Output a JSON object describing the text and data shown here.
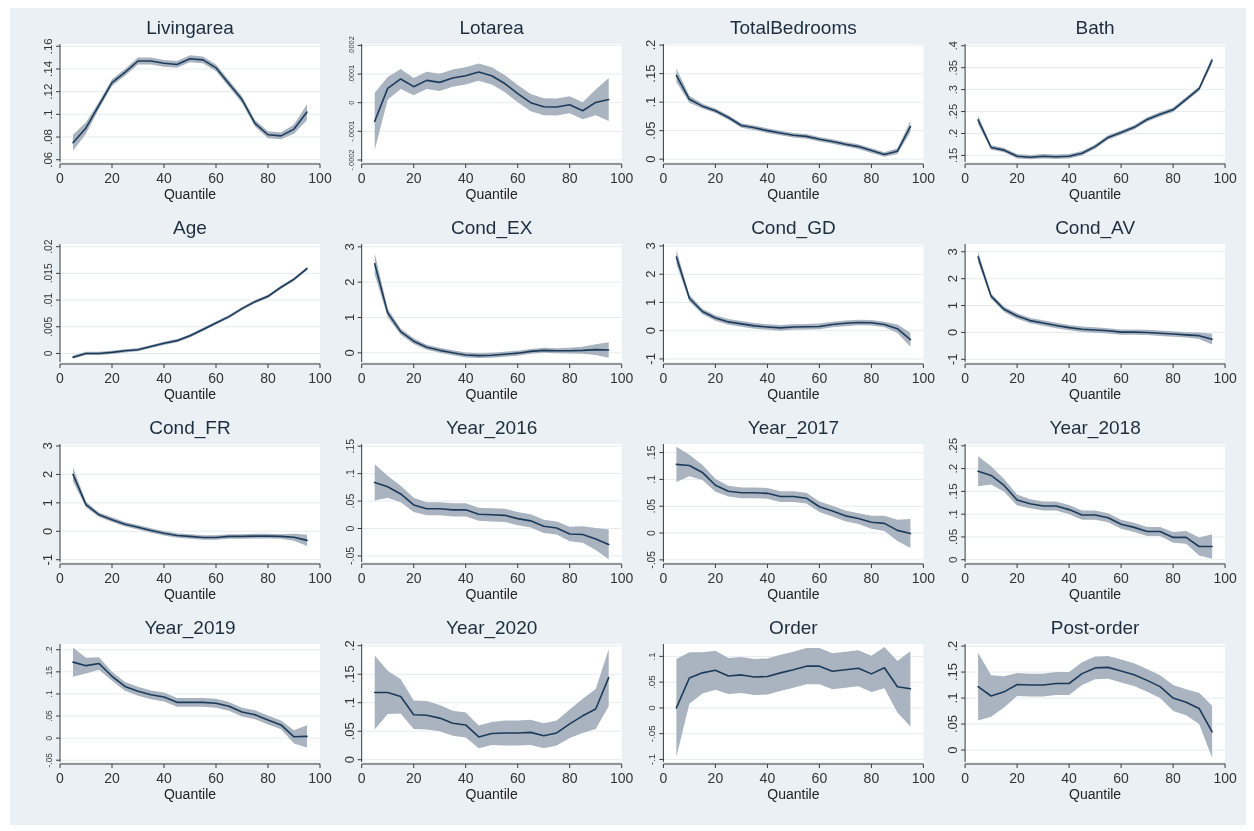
{
  "chart_data": [
    {
      "type": "line",
      "title": "Livingarea",
      "xlabel": "Quantile",
      "grid": "y",
      "xlim": [
        0,
        100
      ],
      "xticks": [
        0,
        20,
        40,
        60,
        80,
        100
      ],
      "ylim": [
        0.058,
        0.162
      ],
      "yticks": [
        {
          "value": 0.06,
          "label": ".06"
        },
        {
          "value": 0.08,
          "label": ".08"
        },
        {
          "value": 0.1,
          "label": ".1"
        },
        {
          "value": 0.12,
          "label": ".12"
        },
        {
          "value": 0.14,
          "label": ".14"
        },
        {
          "value": 0.16,
          "label": ".16"
        }
      ],
      "x": [
        5,
        10,
        15,
        20,
        25,
        30,
        35,
        40,
        45,
        50,
        55,
        60,
        65,
        70,
        75,
        80,
        85,
        90,
        95
      ],
      "series": [
        {
          "color": "#1c3a5a",
          "values": [
            0.075,
            0.088,
            0.108,
            0.128,
            0.137,
            0.147,
            0.147,
            0.145,
            0.144,
            0.149,
            0.148,
            0.141,
            0.127,
            0.113,
            0.092,
            0.082,
            0.081,
            0.087,
            0.102
          ],
          "lower": [
            0.068,
            0.083,
            0.105,
            0.125,
            0.134,
            0.144,
            0.144,
            0.142,
            0.141,
            0.146,
            0.145,
            0.138,
            0.124,
            0.11,
            0.089,
            0.079,
            0.078,
            0.083,
            0.095
          ],
          "upper": [
            0.082,
            0.093,
            0.111,
            0.131,
            0.14,
            0.15,
            0.15,
            0.148,
            0.147,
            0.152,
            0.151,
            0.144,
            0.13,
            0.116,
            0.095,
            0.085,
            0.084,
            0.091,
            0.109
          ]
        }
      ]
    },
    {
      "type": "line",
      "title": "Lotarea",
      "xlabel": "Quantile",
      "grid": "y",
      "xlim": [
        0,
        100
      ],
      "xticks": [
        0,
        20,
        40,
        60,
        80,
        100
      ],
      "ylim": [
        -0.000207,
        0.000205
      ],
      "yticks": [
        {
          "value": -0.0002,
          "label": "-.0002"
        },
        {
          "value": -0.0001,
          "label": "-.0001"
        },
        0,
        {
          "value": 0.0001,
          "label": ".0001"
        },
        {
          "value": 0.0002,
          "label": ".0002"
        }
      ],
      "x": [
        5,
        10,
        15,
        20,
        25,
        30,
        35,
        40,
        45,
        50,
        55,
        60,
        65,
        70,
        75,
        80,
        85,
        90,
        95
      ],
      "series": [
        {
          "color": "#1c3a5a",
          "values": [
            -6.5e-05,
            5e-05,
            8.3e-05,
            5.6e-05,
            7.8e-05,
            7.1e-05,
            8.6e-05,
            9.4e-05,
            0.000107,
            9.4e-05,
            6.7e-05,
            3.2e-05,
            0,
            -1.4e-05,
            -1.5e-05,
            -7e-06,
            -2.8e-05,
            1e-06,
            1.1e-05
          ],
          "lower": [
            -0.000165,
            1e-05,
            4.8e-05,
            2.6e-05,
            4.8e-05,
            4.1e-05,
            5.6e-05,
            6.4e-05,
            7.7e-05,
            6.4e-05,
            3.7e-05,
            2e-06,
            -3e-05,
            -4.4e-05,
            -4.5e-05,
            -3.7e-05,
            -5.8e-05,
            -4.4e-05,
            -6.4e-05
          ],
          "upper": [
            3.5e-05,
            9e-05,
            0.000118,
            8.6e-05,
            0.000108,
            0.000101,
            0.000116,
            0.000124,
            0.000137,
            0.000124,
            9.7e-05,
            6.2e-05,
            3e-05,
            1.6e-05,
            1.5e-05,
            2.3e-05,
            2e-06,
            4.6e-05,
            8.6e-05
          ]
        }
      ]
    },
    {
      "type": "line",
      "title": "TotalBedrooms",
      "xlabel": "Quantile",
      "grid": "y",
      "xlim": [
        0,
        100
      ],
      "xticks": [
        0,
        20,
        40,
        60,
        80,
        100
      ],
      "ylim": [
        -0.005,
        0.202
      ],
      "yticks": [
        0,
        {
          "value": 0.05,
          "label": ".05"
        },
        {
          "value": 0.1,
          "label": ".1"
        },
        {
          "value": 0.15,
          "label": ".15"
        },
        {
          "value": 0.2,
          "label": ".2"
        }
      ],
      "x": [
        5,
        10,
        15,
        20,
        25,
        30,
        35,
        40,
        45,
        50,
        55,
        60,
        65,
        70,
        75,
        80,
        85,
        90,
        95
      ],
      "series": [
        {
          "color": "#1c3a5a",
          "values": [
            0.147,
            0.105,
            0.093,
            0.085,
            0.073,
            0.059,
            0.055,
            0.05,
            0.046,
            0.042,
            0.04,
            0.035,
            0.031,
            0.026,
            0.022,
            0.015,
            0.008,
            0.014,
            0.057
          ],
          "lower": [
            0.135,
            0.099,
            0.089,
            0.081,
            0.069,
            0.055,
            0.051,
            0.046,
            0.042,
            0.038,
            0.036,
            0.031,
            0.027,
            0.022,
            0.018,
            0.011,
            0.004,
            0.009,
            0.047
          ],
          "upper": [
            0.159,
            0.111,
            0.097,
            0.089,
            0.077,
            0.063,
            0.059,
            0.054,
            0.05,
            0.046,
            0.044,
            0.039,
            0.035,
            0.03,
            0.026,
            0.019,
            0.012,
            0.019,
            0.067
          ]
        }
      ]
    },
    {
      "type": "line",
      "title": "Bath",
      "xlabel": "Quantile",
      "grid": "y",
      "xlim": [
        0,
        100
      ],
      "xticks": [
        0,
        20,
        40,
        60,
        80,
        100
      ],
      "ylim": [
        0.135,
        0.404
      ],
      "yticks": [
        {
          "value": 0.15,
          "label": ".15"
        },
        {
          "value": 0.2,
          "label": ".2"
        },
        {
          "value": 0.25,
          "label": ".25"
        },
        {
          "value": 0.3,
          "label": ".3"
        },
        {
          "value": 0.35,
          "label": ".35"
        },
        {
          "value": 0.4,
          "label": ".4"
        }
      ],
      "x": [
        5,
        10,
        15,
        20,
        25,
        30,
        35,
        40,
        45,
        50,
        55,
        60,
        65,
        70,
        75,
        80,
        85,
        90,
        95
      ],
      "series": [
        {
          "color": "#1c3a5a",
          "values": [
            0.231,
            0.168,
            0.162,
            0.148,
            0.146,
            0.148,
            0.147,
            0.148,
            0.155,
            0.17,
            0.191,
            0.202,
            0.214,
            0.232,
            0.244,
            0.254,
            0.278,
            0.302,
            0.367
          ],
          "lower": [
            0.221,
            0.163,
            0.157,
            0.143,
            0.141,
            0.143,
            0.142,
            0.143,
            0.15,
            0.165,
            0.186,
            0.197,
            0.209,
            0.227,
            0.239,
            0.249,
            0.273,
            0.297,
            0.359
          ],
          "upper": [
            0.241,
            0.173,
            0.167,
            0.153,
            0.151,
            0.153,
            0.152,
            0.153,
            0.16,
            0.175,
            0.196,
            0.207,
            0.219,
            0.237,
            0.249,
            0.259,
            0.283,
            0.307,
            0.375
          ]
        }
      ]
    },
    {
      "type": "line",
      "title": "Age",
      "xlabel": "Quantile",
      "grid": "y",
      "xlim": [
        0,
        100
      ],
      "xticks": [
        0,
        20,
        40,
        60,
        80,
        100
      ],
      "ylim": [
        -0.0016,
        0.0205
      ],
      "yticks": [
        0,
        {
          "value": 0.005,
          "label": ".005"
        },
        {
          "value": 0.01,
          "label": ".01"
        },
        {
          "value": 0.015,
          "label": ".015"
        },
        {
          "value": 0.02,
          "label": ".02"
        }
      ],
      "x": [
        5,
        10,
        15,
        20,
        25,
        30,
        35,
        40,
        45,
        50,
        55,
        60,
        65,
        70,
        75,
        80,
        85,
        90,
        95
      ],
      "series": [
        {
          "color": "#1c3a5a",
          "values": [
            -0.0007,
            0,
            0,
            0.0002,
            0.0005,
            0.0007,
            0.0013,
            0.0019,
            0.0024,
            0.0033,
            0.0045,
            0.0057,
            0.0069,
            0.0084,
            0.0097,
            0.0107,
            0.0124,
            0.0139,
            0.0159
          ],
          "lower": [
            -0.001,
            -0.0003,
            -0.0003,
            -0.0001,
            0.0002,
            0.0004,
            0.001,
            0.0016,
            0.0021,
            0.003,
            0.0042,
            0.0054,
            0.0066,
            0.0081,
            0.0094,
            0.0104,
            0.0121,
            0.0136,
            0.0156
          ],
          "upper": [
            -0.0004,
            0.0003,
            0.0003,
            0.0005,
            0.0008,
            0.001,
            0.0016,
            0.0022,
            0.0027,
            0.0036,
            0.0048,
            0.006,
            0.0072,
            0.0087,
            0.01,
            0.011,
            0.0127,
            0.0142,
            0.0162
          ]
        }
      ]
    },
    {
      "type": "line",
      "title": "Cond_EX",
      "xlabel": "Quantile",
      "grid": "y",
      "xlim": [
        0,
        100
      ],
      "xticks": [
        0,
        20,
        40,
        60,
        80,
        100
      ],
      "ylim": [
        -0.26,
        3.08
      ],
      "yticks": [
        0,
        1,
        2,
        3
      ],
      "x": [
        5,
        10,
        15,
        20,
        25,
        30,
        35,
        40,
        45,
        50,
        55,
        60,
        65,
        70,
        75,
        80,
        85,
        90,
        95
      ],
      "series": [
        {
          "color": "#1c3a5a",
          "values": [
            2.52,
            1.13,
            0.6,
            0.33,
            0.16,
            0.07,
            0,
            -0.06,
            -0.08,
            -0.07,
            -0.04,
            -0.01,
            0.04,
            0.07,
            0.06,
            0.06,
            0.07,
            0.09,
            0.08
          ],
          "lower": [
            2.22,
            1.01,
            0.51,
            0.25,
            0.09,
            0,
            -0.07,
            -0.13,
            -0.15,
            -0.14,
            -0.11,
            -0.08,
            -0.03,
            0,
            -0.01,
            -0.02,
            -0.03,
            -0.06,
            -0.14
          ],
          "upper": [
            2.82,
            1.25,
            0.69,
            0.41,
            0.23,
            0.14,
            0.07,
            0.01,
            -0.01,
            0,
            0.03,
            0.06,
            0.11,
            0.14,
            0.13,
            0.14,
            0.17,
            0.24,
            0.3
          ]
        }
      ]
    },
    {
      "type": "line",
      "title": "Cond_GD",
      "xlabel": "Quantile",
      "grid": "y",
      "xlim": [
        0,
        100
      ],
      "xticks": [
        0,
        20,
        40,
        60,
        80,
        100
      ],
      "ylim": [
        -1.11,
        3.07
      ],
      "yticks": [
        -1,
        0,
        1,
        2,
        3
      ],
      "x": [
        5,
        10,
        15,
        20,
        25,
        30,
        35,
        40,
        45,
        50,
        55,
        60,
        65,
        70,
        75,
        80,
        85,
        90,
        95
      ],
      "series": [
        {
          "color": "#1c3a5a",
          "values": [
            2.61,
            1.15,
            0.68,
            0.45,
            0.31,
            0.24,
            0.17,
            0.13,
            0.1,
            0.13,
            0.14,
            0.15,
            0.22,
            0.26,
            0.29,
            0.28,
            0.22,
            0.07,
            -0.32
          ],
          "lower": [
            2.36,
            1.03,
            0.58,
            0.35,
            0.21,
            0.14,
            0.07,
            0.03,
            0,
            0.03,
            0.04,
            0.05,
            0.12,
            0.16,
            0.19,
            0.18,
            0.12,
            -0.08,
            -0.57
          ],
          "upper": [
            2.86,
            1.27,
            0.78,
            0.55,
            0.41,
            0.34,
            0.27,
            0.23,
            0.2,
            0.23,
            0.24,
            0.25,
            0.32,
            0.36,
            0.39,
            0.38,
            0.32,
            0.22,
            -0.07
          ]
        }
      ]
    },
    {
      "type": "line",
      "title": "Cond_AV",
      "xlabel": "Quantile",
      "grid": "y",
      "xlim": [
        0,
        100
      ],
      "xticks": [
        0,
        20,
        40,
        60,
        80,
        100
      ],
      "ylim": [
        -1.1,
        3.29
      ],
      "yticks": [
        -1,
        0,
        1,
        2,
        3
      ],
      "x": [
        5,
        10,
        15,
        20,
        25,
        30,
        35,
        40,
        45,
        50,
        55,
        60,
        65,
        70,
        75,
        80,
        85,
        90,
        95
      ],
      "series": [
        {
          "color": "#1c3a5a",
          "values": [
            2.81,
            1.35,
            0.86,
            0.61,
            0.44,
            0.35,
            0.26,
            0.18,
            0.12,
            0.09,
            0.06,
            0.01,
            0.01,
            0,
            -0.03,
            -0.06,
            -0.09,
            -0.12,
            -0.25
          ],
          "lower": [
            2.61,
            1.25,
            0.76,
            0.51,
            0.34,
            0.25,
            0.16,
            0.08,
            0.02,
            -0.01,
            -0.04,
            -0.09,
            -0.09,
            -0.1,
            -0.13,
            -0.16,
            -0.19,
            -0.24,
            -0.45
          ],
          "upper": [
            3.01,
            1.45,
            0.96,
            0.71,
            0.54,
            0.45,
            0.36,
            0.28,
            0.22,
            0.19,
            0.16,
            0.11,
            0.11,
            0.1,
            0.07,
            0.04,
            0.01,
            0,
            -0.05
          ]
        }
      ]
    },
    {
      "type": "line",
      "title": "Cond_FR",
      "xlabel": "Quantile",
      "grid": "y",
      "xlim": [
        0,
        100
      ],
      "xticks": [
        0,
        20,
        40,
        60,
        80,
        100
      ],
      "ylim": [
        -1.08,
        3.07
      ],
      "yticks": [
        -1,
        0,
        1,
        2,
        3
      ],
      "x": [
        5,
        10,
        15,
        20,
        25,
        30,
        35,
        40,
        45,
        50,
        55,
        60,
        65,
        70,
        75,
        80,
        85,
        90,
        95
      ],
      "series": [
        {
          "color": "#1c3a5a",
          "values": [
            2.0,
            0.94,
            0.58,
            0.41,
            0.25,
            0.14,
            0.03,
            -0.07,
            -0.15,
            -0.18,
            -0.22,
            -0.22,
            -0.18,
            -0.18,
            -0.17,
            -0.17,
            -0.18,
            -0.21,
            -0.32
          ],
          "lower": [
            1.75,
            0.84,
            0.5,
            0.33,
            0.17,
            0.06,
            -0.05,
            -0.15,
            -0.23,
            -0.26,
            -0.3,
            -0.3,
            -0.26,
            -0.26,
            -0.25,
            -0.25,
            -0.26,
            -0.33,
            -0.52
          ],
          "upper": [
            2.25,
            1.04,
            0.66,
            0.49,
            0.33,
            0.22,
            0.11,
            0.01,
            -0.07,
            -0.1,
            -0.14,
            -0.14,
            -0.1,
            -0.1,
            -0.09,
            -0.09,
            -0.1,
            -0.09,
            -0.12
          ]
        }
      ]
    },
    {
      "type": "line",
      "title": "Year_2016",
      "xlabel": "Quantile",
      "grid": "y",
      "xlim": [
        0,
        100
      ],
      "xticks": [
        0,
        20,
        40,
        60,
        80,
        100
      ],
      "ylim": [
        -0.061,
        0.154
      ],
      "yticks": [
        {
          "value": -0.05,
          "label": "-.05"
        },
        0,
        {
          "value": 0.05,
          "label": ".05"
        },
        {
          "value": 0.1,
          "label": ".1"
        },
        {
          "value": 0.15,
          "label": ".15"
        }
      ],
      "x": [
        5,
        10,
        15,
        20,
        25,
        30,
        35,
        40,
        45,
        50,
        55,
        60,
        65,
        70,
        75,
        80,
        85,
        90,
        95
      ],
      "series": [
        {
          "color": "#1c3a5a",
          "values": [
            0.084,
            0.076,
            0.063,
            0.043,
            0.036,
            0.036,
            0.034,
            0.034,
            0.026,
            0.025,
            0.024,
            0.018,
            0.014,
            0.004,
            0.001,
            -0.01,
            -0.011,
            -0.019,
            -0.029
          ],
          "lower": [
            0.051,
            0.056,
            0.048,
            0.03,
            0.024,
            0.024,
            0.022,
            0.022,
            0.014,
            0.013,
            0.012,
            0.006,
            0.002,
            -0.008,
            -0.011,
            -0.023,
            -0.026,
            -0.039,
            -0.056
          ],
          "upper": [
            0.117,
            0.096,
            0.078,
            0.056,
            0.048,
            0.048,
            0.046,
            0.046,
            0.038,
            0.037,
            0.036,
            0.03,
            0.026,
            0.016,
            0.013,
            0.003,
            0.004,
            0.001,
            -0.002
          ]
        }
      ]
    },
    {
      "type": "line",
      "title": "Year_2017",
      "xlabel": "Quantile",
      "grid": "y",
      "xlim": [
        0,
        100
      ],
      "xticks": [
        0,
        20,
        40,
        60,
        80,
        100
      ],
      "ylim": [
        -0.054,
        0.166
      ],
      "yticks": [
        {
          "value": -0.05,
          "label": "-.05"
        },
        0,
        {
          "value": 0.05,
          "label": ".05"
        },
        {
          "value": 0.1,
          "label": ".1"
        },
        {
          "value": 0.15,
          "label": ".15"
        }
      ],
      "x": [
        5,
        10,
        15,
        20,
        25,
        30,
        35,
        40,
        45,
        50,
        55,
        60,
        65,
        70,
        75,
        80,
        85,
        90,
        95
      ],
      "series": [
        {
          "color": "#1c3a5a",
          "values": [
            0.128,
            0.126,
            0.113,
            0.089,
            0.078,
            0.075,
            0.075,
            0.074,
            0.068,
            0.068,
            0.065,
            0.049,
            0.041,
            0.032,
            0.027,
            0.02,
            0.018,
            0.005,
            -0.001
          ],
          "lower": [
            0.095,
            0.106,
            0.099,
            0.077,
            0.068,
            0.065,
            0.065,
            0.064,
            0.058,
            0.058,
            0.055,
            0.039,
            0.031,
            0.022,
            0.017,
            0.008,
            0.004,
            -0.015,
            -0.028
          ],
          "upper": [
            0.161,
            0.146,
            0.127,
            0.101,
            0.088,
            0.085,
            0.085,
            0.084,
            0.078,
            0.078,
            0.075,
            0.059,
            0.051,
            0.042,
            0.037,
            0.032,
            0.032,
            0.025,
            0.026
          ]
        }
      ]
    },
    {
      "type": "line",
      "title": "Year_2018",
      "xlabel": "Quantile",
      "grid": "y",
      "xlim": [
        0,
        100
      ],
      "xticks": [
        0,
        20,
        40,
        60,
        80,
        100
      ],
      "ylim": [
        -0.005,
        0.254
      ],
      "yticks": [
        0,
        {
          "value": 0.05,
          "label": ".05"
        },
        {
          "value": 0.1,
          "label": ".1"
        },
        {
          "value": 0.15,
          "label": ".15"
        },
        {
          "value": 0.2,
          "label": ".2"
        },
        {
          "value": 0.25,
          "label": ".25"
        }
      ],
      "x": [
        5,
        10,
        15,
        20,
        25,
        30,
        35,
        40,
        45,
        50,
        55,
        60,
        65,
        70,
        75,
        80,
        85,
        90,
        95
      ],
      "series": [
        {
          "color": "#1c3a5a",
          "values": [
            0.194,
            0.185,
            0.163,
            0.131,
            0.123,
            0.118,
            0.118,
            0.11,
            0.098,
            0.098,
            0.092,
            0.078,
            0.071,
            0.062,
            0.062,
            0.049,
            0.049,
            0.029,
            0.029
          ],
          "lower": [
            0.161,
            0.165,
            0.149,
            0.119,
            0.113,
            0.108,
            0.108,
            0.1,
            0.088,
            0.088,
            0.082,
            0.068,
            0.061,
            0.052,
            0.052,
            0.037,
            0.035,
            0.009,
            0.002
          ],
          "upper": [
            0.227,
            0.205,
            0.177,
            0.143,
            0.133,
            0.128,
            0.128,
            0.12,
            0.108,
            0.108,
            0.102,
            0.088,
            0.081,
            0.072,
            0.072,
            0.061,
            0.063,
            0.049,
            0.056
          ]
        }
      ]
    },
    {
      "type": "line",
      "title": "Year_2019",
      "xlabel": "Quantile",
      "grid": "y",
      "xlim": [
        0,
        100
      ],
      "xticks": [
        0,
        20,
        40,
        60,
        80,
        100
      ],
      "ylim": [
        -0.054,
        0.213
      ],
      "yticks": [
        {
          "value": -0.05,
          "label": "-.05"
        },
        0,
        {
          "value": 0.05,
          "label": ".05"
        },
        {
          "value": 0.1,
          "label": ".1"
        },
        {
          "value": 0.15,
          "label": ".15"
        },
        {
          "value": 0.2,
          "label": ".2"
        }
      ],
      "x": [
        5,
        10,
        15,
        20,
        25,
        30,
        35,
        40,
        45,
        50,
        55,
        60,
        65,
        70,
        75,
        80,
        85,
        90,
        95
      ],
      "series": [
        {
          "color": "#1c3a5a",
          "values": [
            0.172,
            0.164,
            0.169,
            0.14,
            0.117,
            0.106,
            0.098,
            0.093,
            0.081,
            0.081,
            0.081,
            0.079,
            0.072,
            0.059,
            0.053,
            0.041,
            0.03,
            0.003,
            0.004
          ],
          "lower": [
            0.139,
            0.146,
            0.155,
            0.13,
            0.107,
            0.096,
            0.088,
            0.083,
            0.071,
            0.071,
            0.071,
            0.069,
            0.062,
            0.049,
            0.043,
            0.031,
            0.02,
            -0.012,
            -0.021
          ],
          "upper": [
            0.205,
            0.182,
            0.183,
            0.15,
            0.127,
            0.116,
            0.108,
            0.103,
            0.091,
            0.091,
            0.091,
            0.089,
            0.082,
            0.069,
            0.063,
            0.051,
            0.04,
            0.018,
            0.029
          ]
        }
      ]
    },
    {
      "type": "line",
      "title": "Year_2020",
      "xlabel": "Quantile",
      "grid": "y",
      "xlim": [
        0,
        100
      ],
      "xticks": [
        0,
        20,
        40,
        60,
        80,
        100
      ],
      "ylim": [
        -0.004,
        0.203
      ],
      "yticks": [
        0,
        {
          "value": 0.05,
          "label": ".05"
        },
        {
          "value": 0.1,
          "label": ".1"
        },
        {
          "value": 0.15,
          "label": ".15"
        },
        {
          "value": 0.2,
          "label": ".2"
        }
      ],
      "x": [
        5,
        10,
        15,
        20,
        25,
        30,
        35,
        40,
        45,
        50,
        55,
        60,
        65,
        70,
        75,
        80,
        85,
        90,
        95
      ],
      "series": [
        {
          "color": "#1c3a5a",
          "values": [
            0.118,
            0.118,
            0.111,
            0.079,
            0.078,
            0.073,
            0.064,
            0.061,
            0.04,
            0.046,
            0.047,
            0.047,
            0.048,
            0.042,
            0.047,
            0.063,
            0.077,
            0.089,
            0.144
          ],
          "lower": [
            0.053,
            0.08,
            0.081,
            0.054,
            0.053,
            0.05,
            0.042,
            0.039,
            0.02,
            0.026,
            0.025,
            0.025,
            0.026,
            0.02,
            0.025,
            0.038,
            0.047,
            0.054,
            0.094
          ],
          "upper": [
            0.183,
            0.156,
            0.141,
            0.104,
            0.103,
            0.096,
            0.086,
            0.083,
            0.06,
            0.066,
            0.069,
            0.069,
            0.07,
            0.064,
            0.069,
            0.088,
            0.107,
            0.124,
            0.194
          ]
        }
      ]
    },
    {
      "type": "line",
      "title": "Order",
      "xlabel": "Quantile",
      "grid": "y",
      "xlim": [
        0,
        100
      ],
      "xticks": [
        0,
        20,
        40,
        60,
        80,
        100
      ],
      "ylim": [
        -0.105,
        0.124
      ],
      "yticks": [
        {
          "value": -0.1,
          "label": "-.1"
        },
        {
          "value": -0.05,
          "label": "-.05"
        },
        0,
        {
          "value": 0.05,
          "label": ".05"
        },
        {
          "value": 0.1,
          "label": ".1"
        }
      ],
      "x": [
        5,
        10,
        15,
        20,
        25,
        30,
        35,
        40,
        45,
        50,
        55,
        60,
        65,
        70,
        75,
        80,
        85,
        90,
        95
      ],
      "series": [
        {
          "color": "#1c3a5a",
          "values": [
            0,
            0.058,
            0.068,
            0.073,
            0.062,
            0.064,
            0.06,
            0.061,
            0.068,
            0.074,
            0.081,
            0.081,
            0.071,
            0.074,
            0.077,
            0.066,
            0.078,
            0.041,
            0.037
          ],
          "lower": [
            -0.095,
            0.008,
            0.028,
            0.035,
            0.027,
            0.029,
            0.025,
            0.026,
            0.033,
            0.039,
            0.046,
            0.046,
            0.036,
            0.039,
            0.042,
            0.031,
            0.038,
            -0.009,
            -0.036
          ],
          "upper": [
            0.095,
            0.108,
            0.108,
            0.111,
            0.097,
            0.099,
            0.095,
            0.096,
            0.103,
            0.109,
            0.116,
            0.116,
            0.106,
            0.109,
            0.112,
            0.101,
            0.118,
            0.091,
            0.11
          ]
        }
      ]
    },
    {
      "type": "line",
      "title": "Post-order",
      "xlabel": "Quantile",
      "grid": "y",
      "xlim": [
        0,
        100
      ],
      "xticks": [
        0,
        20,
        40,
        60,
        80,
        100
      ],
      "ylim": [
        -0.023,
        0.204
      ],
      "yticks": [
        0,
        {
          "value": 0.05,
          "label": ".05"
        },
        {
          "value": 0.1,
          "label": ".1"
        },
        {
          "value": 0.15,
          "label": ".15"
        },
        {
          "value": 0.2,
          "label": ".2"
        }
      ],
      "x": [
        5,
        10,
        15,
        20,
        25,
        30,
        35,
        40,
        45,
        50,
        55,
        60,
        65,
        70,
        75,
        80,
        85,
        90,
        95
      ],
      "series": [
        {
          "color": "#1c3a5a",
          "values": [
            0.122,
            0.104,
            0.112,
            0.126,
            0.125,
            0.125,
            0.128,
            0.128,
            0.147,
            0.158,
            0.159,
            0.152,
            0.145,
            0.134,
            0.122,
            0.1,
            0.092,
            0.08,
            0.035
          ],
          "lower": [
            0.057,
            0.064,
            0.082,
            0.104,
            0.103,
            0.103,
            0.106,
            0.106,
            0.125,
            0.136,
            0.137,
            0.13,
            0.123,
            0.112,
            0.1,
            0.075,
            0.067,
            0.05,
            -0.015
          ],
          "upper": [
            0.187,
            0.144,
            0.142,
            0.148,
            0.147,
            0.147,
            0.15,
            0.15,
            0.169,
            0.18,
            0.181,
            0.174,
            0.167,
            0.156,
            0.144,
            0.125,
            0.117,
            0.11,
            0.085
          ]
        }
      ]
    }
  ]
}
